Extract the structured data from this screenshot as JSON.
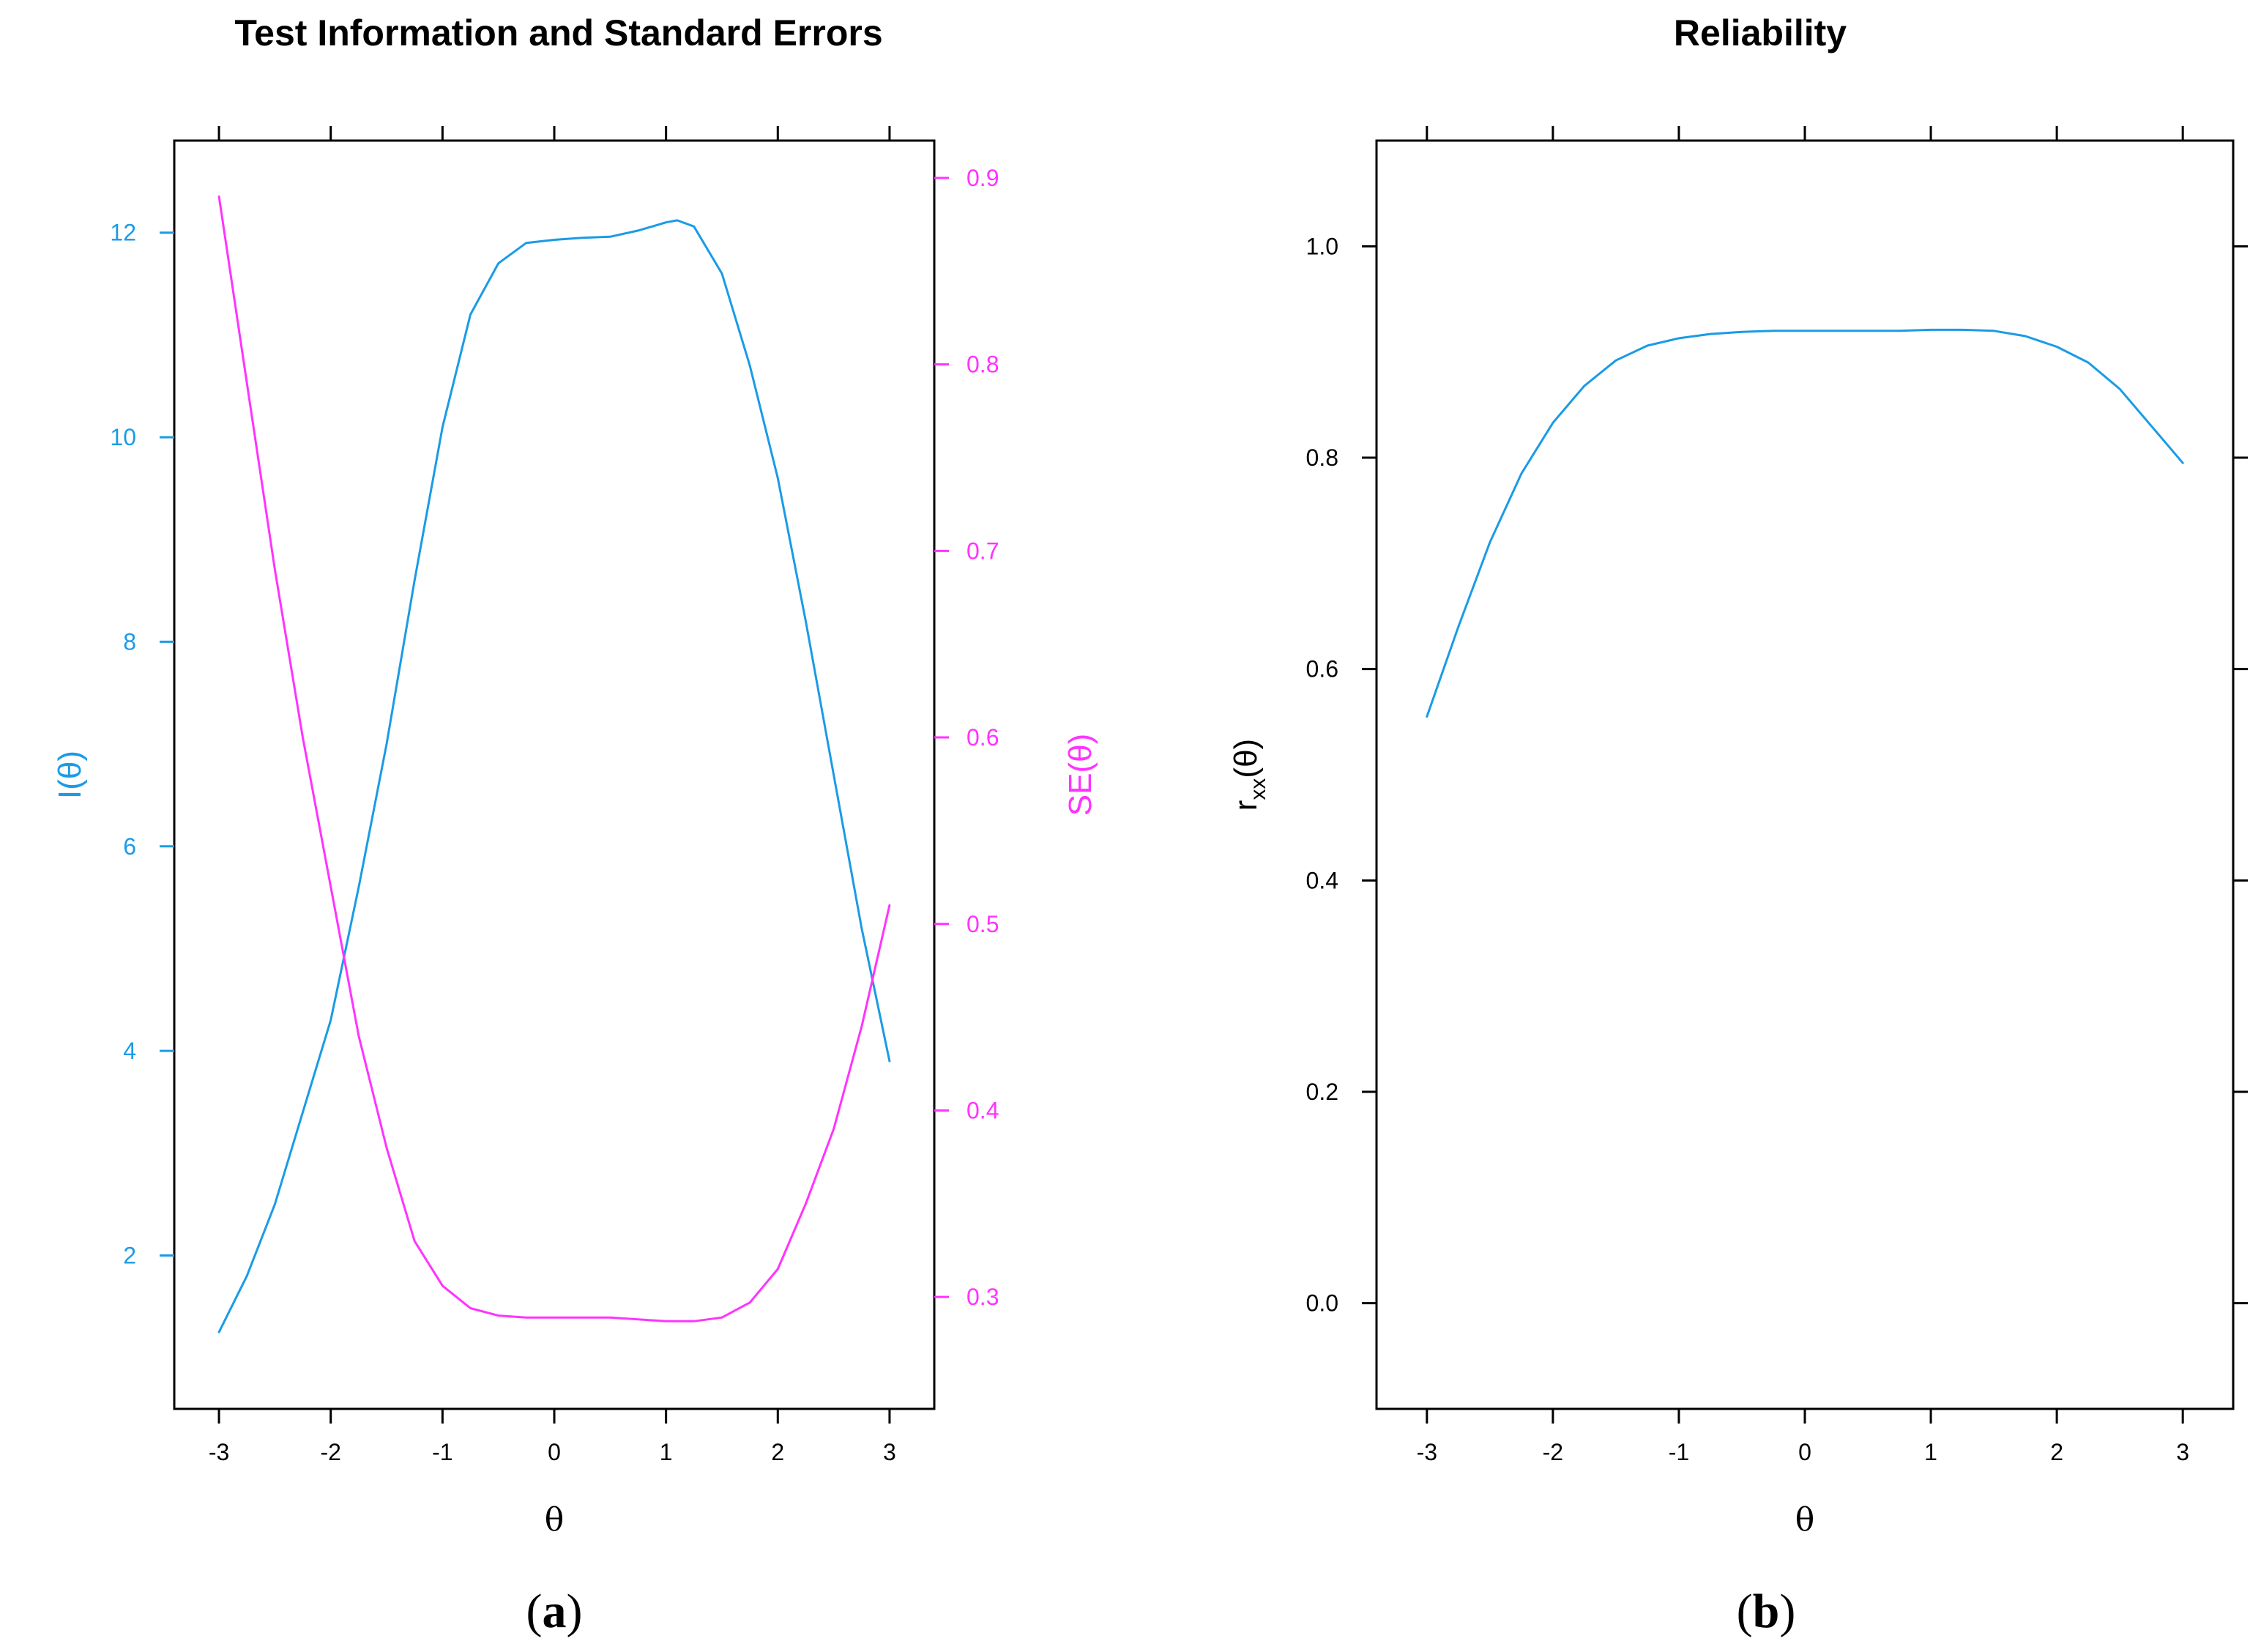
{
  "colors": {
    "info": "#1a9be6",
    "se": "#ff33ff",
    "rel": "#1a9be6",
    "axis": "#000000"
  },
  "panel_labels": {
    "a": "a",
    "b": "b"
  },
  "chart_data": [
    {
      "type": "line",
      "title": "Test Information and Standard Errors",
      "xlabel": "θ",
      "ylabel_left": "I(θ)",
      "ylabel_right": "SE(θ)",
      "xlim": [
        -3.4,
        3.4
      ],
      "ylim_left": [
        0.5,
        12.9
      ],
      "ylim_right": [
        0.24,
        0.92
      ],
      "xticks": [
        -3,
        -2,
        -1,
        0,
        1,
        2,
        3
      ],
      "xtick_labels": [
        "-3",
        "-2",
        "-1",
        "0",
        "1",
        "2",
        "3"
      ],
      "yticks_left": [
        2,
        4,
        6,
        8,
        10,
        12
      ],
      "ytick_labels_left": [
        "2",
        "4",
        "6",
        "8",
        "10",
        "12"
      ],
      "yticks_right": [
        0.3,
        0.4,
        0.5,
        0.6,
        0.7,
        0.8,
        0.9
      ],
      "ytick_labels_right": [
        "0.3",
        "0.4",
        "0.5",
        "0.6",
        "0.7",
        "0.8",
        "0.9"
      ],
      "grid": false,
      "series": [
        {
          "axis": "left",
          "x": [
            -3.0,
            -2.75,
            -2.5,
            -2.25,
            -2.0,
            -1.75,
            -1.5,
            -1.25,
            -1.0,
            -0.75,
            -0.5,
            -0.25,
            0.0,
            0.25,
            0.5,
            0.75,
            1.0,
            1.1,
            1.25,
            1.5,
            1.75,
            2.0,
            2.25,
            2.5,
            2.75,
            3.0
          ],
          "y": [
            1.25,
            1.8,
            2.5,
            3.4,
            4.3,
            5.6,
            7.0,
            8.6,
            10.1,
            11.2,
            11.7,
            11.9,
            11.93,
            11.95,
            11.96,
            12.02,
            12.1,
            12.12,
            12.06,
            11.6,
            10.7,
            9.6,
            8.2,
            6.7,
            5.2,
            3.9
          ]
        },
        {
          "axis": "right",
          "x": [
            -3.0,
            -2.75,
            -2.5,
            -2.25,
            -2.0,
            -1.75,
            -1.5,
            -1.25,
            -1.0,
            -0.75,
            -0.5,
            -0.25,
            0.0,
            0.25,
            0.5,
            0.75,
            1.0,
            1.25,
            1.5,
            1.75,
            2.0,
            2.25,
            2.5,
            2.75,
            3.0
          ],
          "y": [
            0.89,
            0.79,
            0.69,
            0.6,
            0.52,
            0.44,
            0.38,
            0.33,
            0.306,
            0.294,
            0.29,
            0.289,
            0.289,
            0.289,
            0.289,
            0.288,
            0.287,
            0.287,
            0.289,
            0.297,
            0.315,
            0.35,
            0.39,
            0.445,
            0.51
          ]
        }
      ]
    },
    {
      "type": "line",
      "title": "Reliability",
      "xlabel": "θ",
      "ylabel_main": "r",
      "ylabel_sub": "xx",
      "ylabel_tail": "(θ)",
      "xlim": [
        -3.4,
        3.4
      ],
      "ylim": [
        -0.1,
        1.1
      ],
      "xticks": [
        -3,
        -2,
        -1,
        0,
        1,
        2,
        3
      ],
      "xtick_labels": [
        "-3",
        "-2",
        "-1",
        "0",
        "1",
        "2",
        "3"
      ],
      "yticks": [
        0.0,
        0.2,
        0.4,
        0.6,
        0.8,
        1.0
      ],
      "ytick_labels": [
        "0.0",
        "0.2",
        "0.4",
        "0.6",
        "0.8",
        "1.0"
      ],
      "grid": false,
      "series": [
        {
          "x": [
            -3.0,
            -2.75,
            -2.5,
            -2.25,
            -2.0,
            -1.75,
            -1.5,
            -1.25,
            -1.0,
            -0.75,
            -0.5,
            -0.25,
            0.0,
            0.25,
            0.5,
            0.75,
            1.0,
            1.25,
            1.5,
            1.75,
            2.0,
            2.25,
            2.5,
            2.75,
            3.0
          ],
          "y": [
            0.555,
            0.64,
            0.72,
            0.785,
            0.833,
            0.868,
            0.892,
            0.906,
            0.913,
            0.917,
            0.919,
            0.92,
            0.92,
            0.92,
            0.92,
            0.92,
            0.921,
            0.921,
            0.92,
            0.915,
            0.905,
            0.89,
            0.865,
            0.83,
            0.795
          ]
        }
      ]
    }
  ]
}
